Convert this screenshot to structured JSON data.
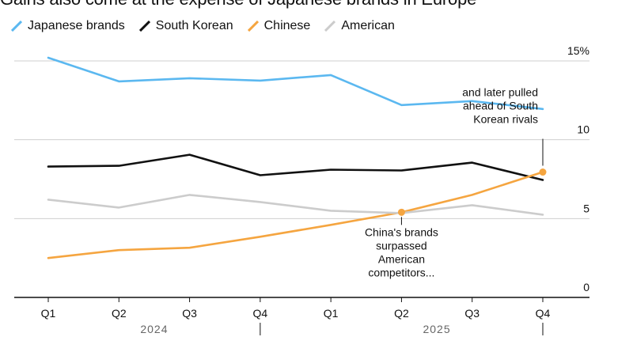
{
  "title": "Gains also come at the expense of Japanese brands in Europe",
  "chart_data": {
    "type": "line",
    "title": "Gains also come at the expense of Japanese brands in Europe",
    "x": [
      "Q1",
      "Q2",
      "Q3",
      "Q4",
      "Q1",
      "Q2",
      "Q3",
      "Q4"
    ],
    "year_labels": [
      "2024",
      "2025"
    ],
    "ylim": [
      0,
      15
    ],
    "yticks": [
      0,
      5,
      10,
      15
    ],
    "ytick_labels": [
      "0",
      "5",
      "10",
      "15%"
    ],
    "grid": true,
    "series": [
      {
        "name": "Japanese brands",
        "color": "#5bb8f0",
        "values": [
          15.2,
          13.7,
          13.9,
          13.75,
          14.1,
          12.2,
          12.45,
          11.95
        ]
      },
      {
        "name": "South Korean",
        "color": "#111111",
        "values": [
          8.3,
          8.35,
          9.05,
          7.75,
          8.1,
          8.05,
          8.55,
          7.45
        ]
      },
      {
        "name": "Chinese",
        "color": "#f5a540",
        "values": [
          2.5,
          3.0,
          3.15,
          3.85,
          4.6,
          5.4,
          6.5,
          7.95
        ]
      },
      {
        "name": "American",
        "color": "#cccccc",
        "values": [
          6.2,
          5.7,
          6.5,
          6.05,
          5.5,
          5.35,
          5.85,
          5.25
        ]
      }
    ],
    "annotations": [
      {
        "text_lines": [
          "and later pulled",
          "ahead of South",
          "Korean rivals"
        ],
        "point_index": 7,
        "series": "Chinese"
      },
      {
        "text_lines": [
          "China's brands",
          "surpassed",
          "American",
          "competitors..."
        ],
        "point_index": 5,
        "series": "Chinese"
      }
    ]
  }
}
